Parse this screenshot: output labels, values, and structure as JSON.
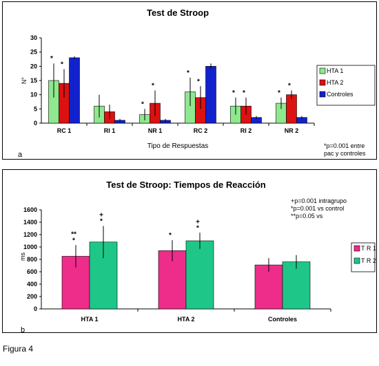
{
  "figure_caption": "Figura 4",
  "chart_data": [
    {
      "type": "bar",
      "panel_label": "a",
      "title": "Test de Stroop",
      "xlabel": "Tipo de Respuestas",
      "ylabel": "N°",
      "ylim": [
        0,
        30
      ],
      "yticks": [
        0,
        5,
        10,
        15,
        20,
        25,
        30
      ],
      "grid": false,
      "legend_position": "right",
      "categories": [
        "RC 1",
        "RI 1",
        "NR 1",
        "RC 2",
        "RI 2",
        "NR 2"
      ],
      "series": [
        {
          "name": "HTA 1",
          "color": "#8ee88e",
          "values": [
            15,
            6,
            3,
            11,
            6,
            7
          ],
          "errors": [
            6,
            4,
            2,
            5,
            3,
            2
          ]
        },
        {
          "name": "HTA 2",
          "color": "#dd1111",
          "values": [
            14,
            4,
            7,
            9,
            6,
            10
          ],
          "errors": [
            5,
            2.5,
            4.5,
            4,
            3,
            1.5
          ]
        },
        {
          "name": "Controles",
          "color": "#1122cc",
          "values": [
            23,
            1,
            1,
            20,
            2,
            2
          ],
          "errors": [
            0.5,
            0.5,
            0.5,
            1,
            0.5,
            0.5
          ]
        }
      ],
      "markers": [
        {
          "category": "RC 1",
          "series": "HTA 1",
          "text": "*"
        },
        {
          "category": "RC 1",
          "series": "HTA 2",
          "text": "*"
        },
        {
          "category": "NR 1",
          "series": "HTA 1",
          "text": "*"
        },
        {
          "category": "NR 1",
          "series": "HTA 2",
          "text": "*"
        },
        {
          "category": "RC 2",
          "series": "HTA 1",
          "text": "*"
        },
        {
          "category": "RC 2",
          "series": "HTA 2",
          "text": "*"
        },
        {
          "category": "RI 2",
          "series": "HTA 1",
          "text": "*"
        },
        {
          "category": "RI 2",
          "series": "HTA 2",
          "text": "*"
        },
        {
          "category": "NR 2",
          "series": "HTA 1",
          "text": "*"
        },
        {
          "category": "NR 2",
          "series": "HTA 2",
          "text": "*"
        }
      ],
      "annotations": [
        "*p=0.001 entre",
        "pac y controles"
      ]
    },
    {
      "type": "bar",
      "panel_label": "b",
      "title": "Test de Stroop: Tiempos de Reacción",
      "xlabel": "",
      "ylabel": "ms",
      "ylim": [
        0,
        1600
      ],
      "yticks": [
        0,
        200,
        400,
        600,
        800,
        1000,
        1200,
        1400,
        1600
      ],
      "grid": false,
      "legend_position": "right",
      "categories": [
        "HTA 1",
        "HTA 2",
        "Controles"
      ],
      "series": [
        {
          "name": "T R 1",
          "color": "#ee2d8a",
          "values": [
            850,
            940,
            710
          ],
          "errors": [
            180,
            170,
            110
          ]
        },
        {
          "name": "T R 2",
          "color": "#1ec787",
          "values": [
            1080,
            1100,
            760
          ],
          "errors": [
            260,
            130,
            110
          ]
        }
      ],
      "markers": [
        {
          "category": "HTA 1",
          "series": "T R 1",
          "text": "*"
        },
        {
          "category": "HTA 1",
          "series": "T R 1",
          "text": "**"
        },
        {
          "category": "HTA 1",
          "series": "T R 2",
          "text": "*"
        },
        {
          "category": "HTA 1",
          "series": "T R 2",
          "text": "+"
        },
        {
          "category": "HTA 2",
          "series": "T R 1",
          "text": "*"
        },
        {
          "category": "HTA 2",
          "series": "T R 2",
          "text": "*"
        },
        {
          "category": "HTA 2",
          "series": "T R 2",
          "text": "+"
        }
      ],
      "annotations": [
        "+p=0.001 intragrupo",
        "*p=0.001 vs control",
        "**p=0.05 vs"
      ]
    }
  ]
}
